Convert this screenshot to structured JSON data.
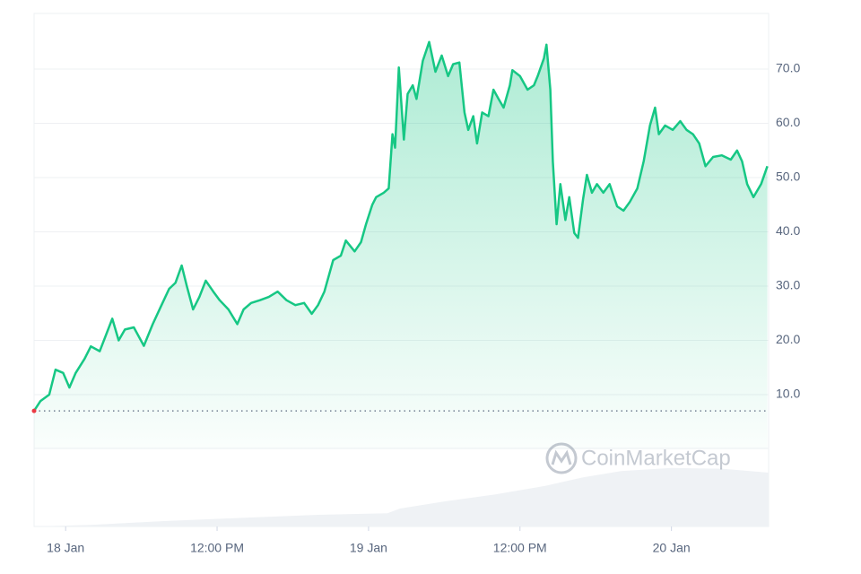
{
  "chart_data": {
    "type": "area",
    "watermark": "CoinMarketCap",
    "x": [
      -2.5,
      -2.0,
      -1.3,
      -0.8,
      -0.2,
      0.3,
      0.8,
      1.5,
      2.0,
      2.7,
      3.3,
      3.7,
      4.2,
      4.7,
      5.4,
      6.2,
      6.9,
      7.6,
      8.2,
      8.7,
      9.2,
      9.6,
      10.1,
      10.6,
      11.1,
      11.7,
      12.2,
      12.9,
      13.6,
      14.1,
      14.7,
      15.4,
      16.1,
      16.8,
      17.5,
      18.2,
      18.9,
      19.5,
      20.0,
      20.5,
      21.2,
      21.8,
      22.2,
      22.9,
      23.4,
      23.8,
      24.3,
      24.6,
      25.2,
      25.6,
      25.9,
      26.1,
      26.4,
      26.8,
      27.1,
      27.5,
      27.8,
      28.3,
      28.8,
      29.3,
      29.8,
      30.3,
      30.7,
      31.2,
      31.6,
      31.9,
      32.3,
      32.6,
      33.0,
      33.5,
      33.9,
      34.3,
      34.7,
      35.2,
      35.4,
      36.0,
      36.6,
      37.1,
      37.4,
      37.9,
      38.1,
      38.4,
      38.6,
      38.9,
      39.2,
      39.6,
      39.9,
      40.3,
      40.6,
      41.0,
      41.3,
      41.7,
      42.1,
      42.6,
      43.1,
      43.7,
      44.2,
      44.7,
      45.3,
      45.8,
      46.3,
      46.7,
      47.0,
      47.5,
      48.1,
      48.7,
      49.2,
      49.7,
      50.2,
      50.7,
      51.3,
      52.0,
      52.7,
      53.2,
      53.6,
      54.0,
      54.5,
      55.1,
      55.6
    ],
    "series": [
      {
        "color": "#16c784",
        "values": [
          7.0,
          8.8,
          10,
          14.6,
          14,
          11.3,
          14,
          16.6,
          18.9,
          18,
          21.6,
          24,
          20,
          22,
          22.4,
          19,
          23,
          26.5,
          29.5,
          30.6,
          33.8,
          30,
          25.7,
          28,
          31,
          29,
          27.4,
          25.7,
          23,
          25.7,
          26.9,
          27.4,
          28,
          29,
          27.4,
          26.5,
          26.9,
          24.9,
          26.5,
          29,
          34.8,
          35.6,
          38.4,
          36.4,
          38.1,
          41.4,
          45,
          46.4,
          47.2,
          48,
          58,
          55.5,
          70.3,
          57,
          65.4,
          67,
          64.5,
          71.5,
          75,
          69.5,
          72.5,
          68.7,
          70.9,
          71.2,
          62,
          58.8,
          61.3,
          56.3,
          62,
          61.3,
          66.2,
          64.5,
          62.9,
          67,
          69.8,
          68.7,
          66.2,
          67,
          68.7,
          72,
          74.5,
          66.2,
          53,
          41.4,
          48.8,
          42.2,
          46.4,
          39.8,
          38.9,
          46,
          50.5,
          47.2,
          48.8,
          47.2,
          48.8,
          44.7,
          43.9,
          45.5,
          48,
          53,
          59.6,
          62.9,
          58,
          59.6,
          58.8,
          60.4,
          58.8,
          58,
          56.3,
          52.1,
          53.8,
          54.1,
          53.3,
          55,
          53,
          48.8,
          46.4,
          48.8,
          52.1
        ]
      }
    ],
    "volume": {
      "color": "#eff2f5",
      "ylim": [
        0,
        100
      ],
      "x": [
        -2.5,
        2,
        8,
        14,
        20,
        25.5,
        26.5,
        30,
        34,
        38,
        41,
        44,
        48,
        52,
        55.7
      ],
      "values": [
        0,
        2,
        7,
        11,
        15,
        17,
        23,
        32,
        41,
        52,
        63,
        71,
        75,
        74,
        69
      ]
    },
    "xlim": [
      -2.5,
      55.7
    ],
    "xticks": [
      {
        "value": 0,
        "label": "18 Jan"
      },
      {
        "value": 12,
        "label": "12:00 PM"
      },
      {
        "value": 24,
        "label": "19 Jan"
      },
      {
        "value": 36,
        "label": "12:00 PM"
      },
      {
        "value": 48,
        "label": "20 Jan"
      }
    ],
    "ylim": [
      0,
      80
    ],
    "yticks": [
      {
        "value": 10,
        "label": "10.0"
      },
      {
        "value": 20,
        "label": "20.0"
      },
      {
        "value": 30,
        "label": "30.0"
      },
      {
        "value": 40,
        "label": "40.0"
      },
      {
        "value": 50,
        "label": "50.0"
      },
      {
        "value": 60,
        "label": "60.0"
      },
      {
        "value": 70,
        "label": "70.0"
      }
    ],
    "grid": true
  }
}
